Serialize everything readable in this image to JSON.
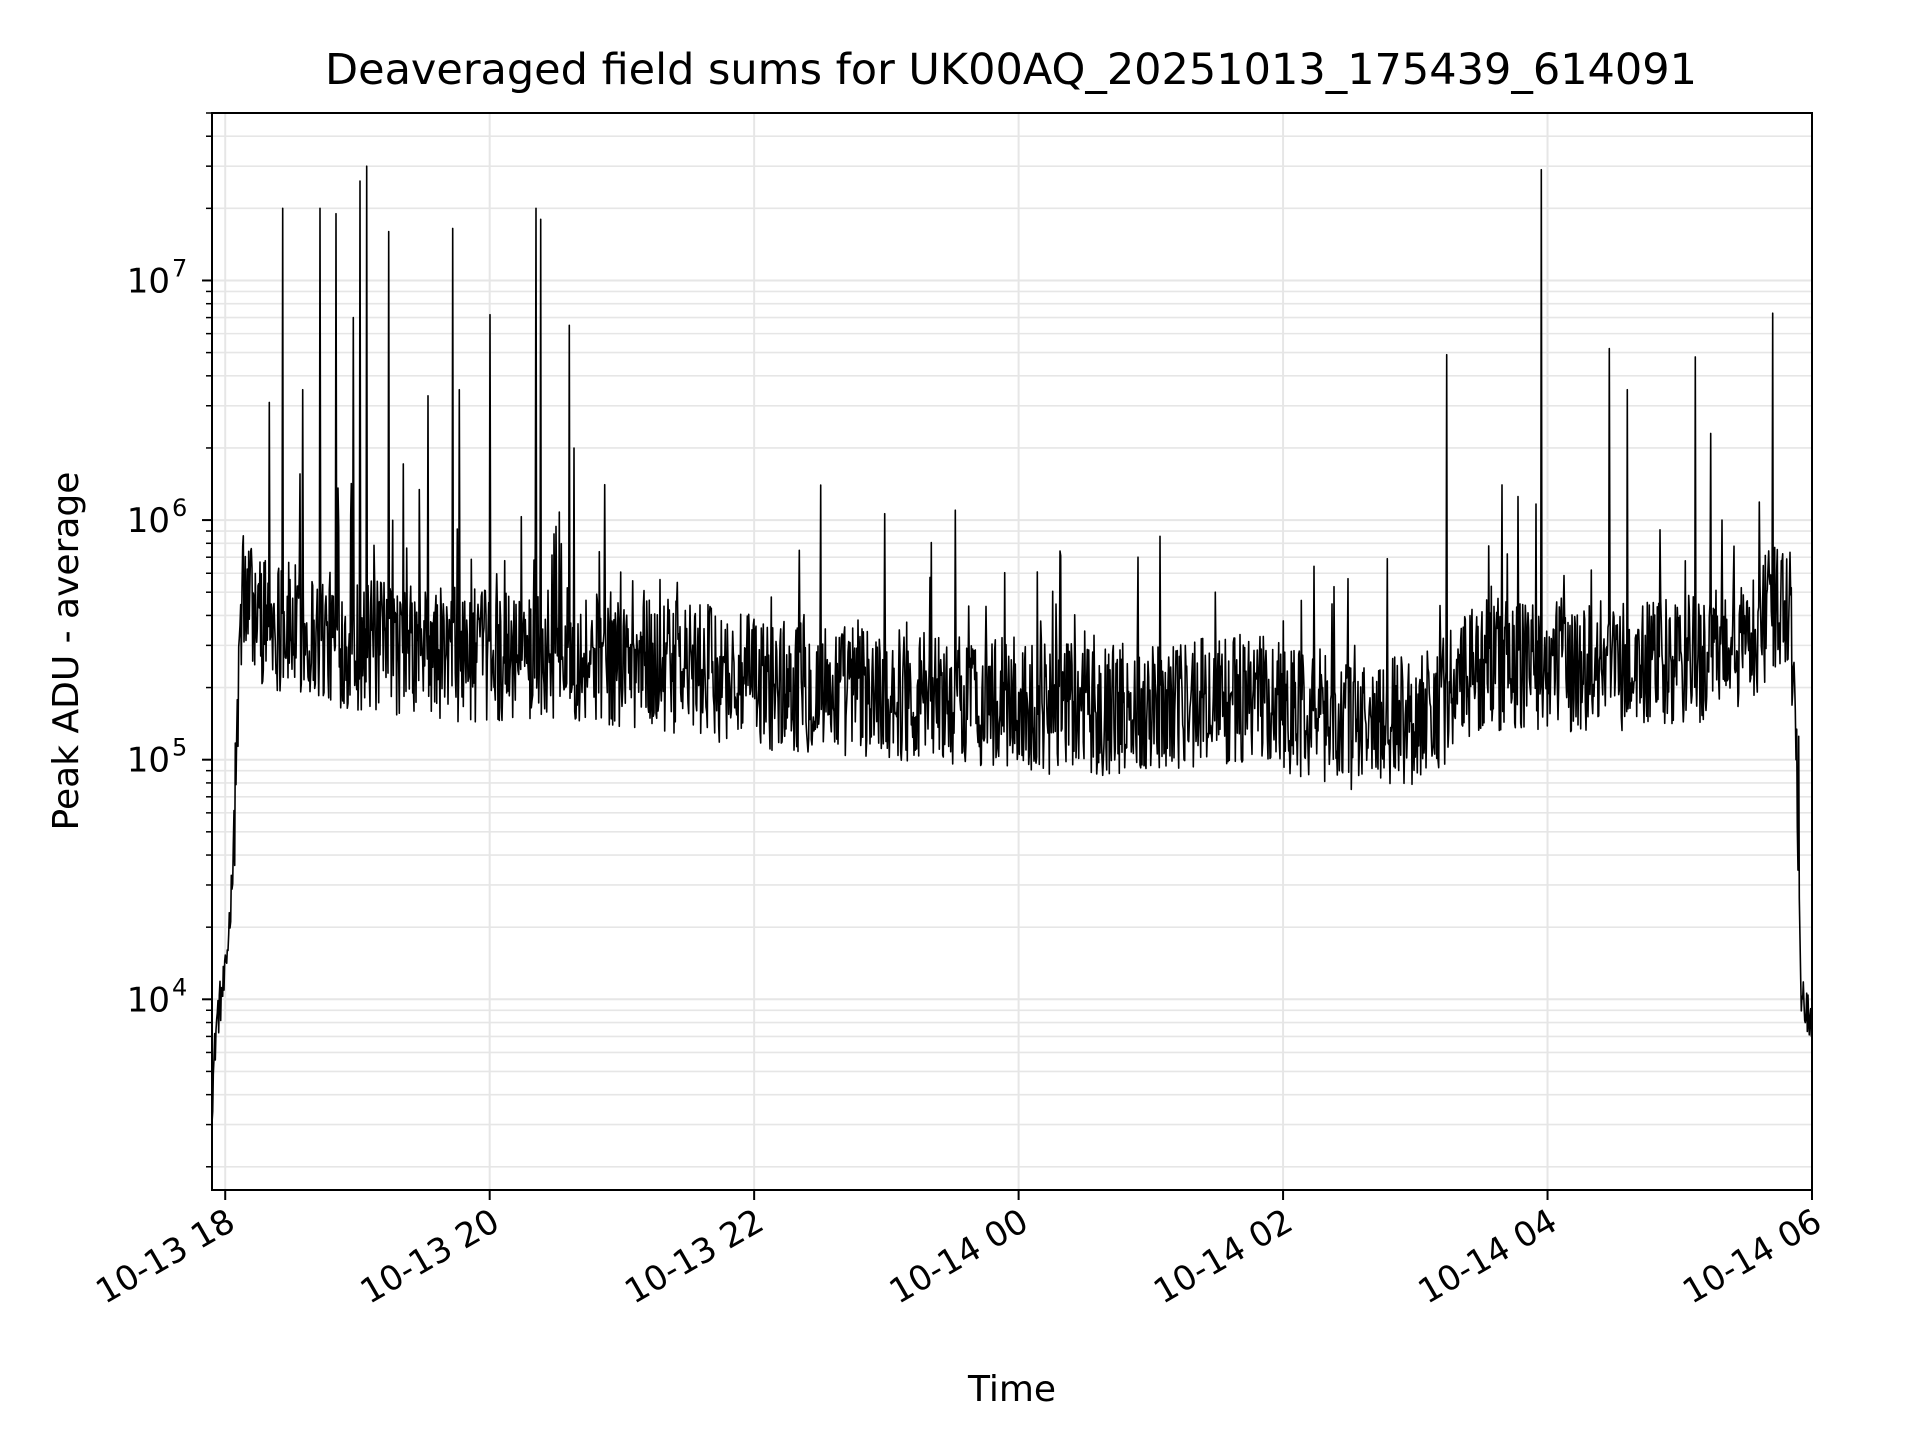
{
  "chart_data": {
    "type": "line",
    "title": "Deaveraged field sums for UK00AQ_20251013_175439_614091",
    "xlabel": "Time",
    "ylabel": "Peak ADU - average",
    "x_scale": "time",
    "y_scale": "log",
    "xlim": [
      "2025-10-13 17:54",
      "2025-10-14 06:00"
    ],
    "ylim": [
      1600,
      50000000
    ],
    "x_ticks": [
      {
        "value": "2025-10-13 18:00",
        "label": "10-13 18"
      },
      {
        "value": "2025-10-13 20:00",
        "label": "10-13 20"
      },
      {
        "value": "2025-10-13 22:00",
        "label": "10-13 22"
      },
      {
        "value": "2025-10-14 00:00",
        "label": "10-14 00"
      },
      {
        "value": "2025-10-14 02:00",
        "label": "10-14 02"
      },
      {
        "value": "2025-10-14 04:00",
        "label": "10-14 04"
      },
      {
        "value": "2025-10-14 06:00",
        "label": "10-14 06"
      }
    ],
    "y_ticks": [
      {
        "value": 10000,
        "base": "10",
        "exp": "4"
      },
      {
        "value": 100000,
        "base": "10",
        "exp": "5"
      },
      {
        "value": 1000000,
        "base": "10",
        "exp": "6"
      },
      {
        "value": 10000000,
        "base": "10",
        "exp": "7"
      }
    ],
    "grid": true,
    "minor_grid_y": true,
    "line_color": "#000000",
    "grid_color": "#e6e6e6",
    "series": [
      {
        "points": [
          [
            "2025-10-13 17:54",
            3800
          ],
          [
            "2025-10-13 17:56",
            8000
          ],
          [
            "2025-10-13 17:58",
            10000
          ],
          [
            "2025-10-13 18:00",
            12000
          ],
          [
            "2025-10-13 18:03",
            30000
          ],
          [
            "2025-10-13 18:06",
            200000
          ],
          [
            "2025-10-13 18:08",
            500000
          ],
          [
            "2025-10-13 18:15",
            400000
          ],
          [
            "2025-10-13 18:30",
            350000
          ],
          [
            "2025-10-13 19:00",
            300000
          ],
          [
            "2025-10-13 19:30",
            280000
          ],
          [
            "2025-10-13 20:00",
            270000
          ],
          [
            "2025-10-13 20:30",
            280000
          ],
          [
            "2025-10-13 21:00",
            260000
          ],
          [
            "2025-10-13 21:30",
            240000
          ],
          [
            "2025-10-13 22:00",
            210000
          ],
          [
            "2025-10-13 22:30",
            200000
          ],
          [
            "2025-10-13 23:00",
            190000
          ],
          [
            "2025-10-13 23:30",
            180000
          ],
          [
            "2025-10-14 00:00",
            170000
          ],
          [
            "2025-10-14 00:30",
            160000
          ],
          [
            "2025-10-14 01:00",
            170000
          ],
          [
            "2025-10-14 01:30",
            180000
          ],
          [
            "2025-10-14 02:00",
            170000
          ],
          [
            "2025-10-14 02:30",
            140000
          ],
          [
            "2025-10-14 03:00",
            150000
          ],
          [
            "2025-10-14 03:20",
            200000
          ],
          [
            "2025-10-14 03:30",
            250000
          ],
          [
            "2025-10-14 04:00",
            250000
          ],
          [
            "2025-10-14 04:30",
            240000
          ],
          [
            "2025-10-14 05:00",
            250000
          ],
          [
            "2025-10-14 05:30",
            300000
          ],
          [
            "2025-10-14 05:45",
            450000
          ],
          [
            "2025-10-14 05:50",
            500000
          ],
          [
            "2025-10-14 05:53",
            100000
          ],
          [
            "2025-10-14 05:55",
            11000
          ],
          [
            "2025-10-14 06:00",
            8000
          ]
        ],
        "spikes": [
          [
            "2025-10-13 18:20",
            3100000
          ],
          [
            "2025-10-13 18:26",
            20000000
          ],
          [
            "2025-10-13 18:35",
            3500000
          ],
          [
            "2025-10-13 18:43",
            20000000
          ],
          [
            "2025-10-13 18:50",
            19000000
          ],
          [
            "2025-10-13 18:58",
            7000000
          ],
          [
            "2025-10-13 19:01",
            26000000
          ],
          [
            "2025-10-13 19:04",
            30000000
          ],
          [
            "2025-10-13 19:14",
            16000000
          ],
          [
            "2025-10-13 19:32",
            3300000
          ],
          [
            "2025-10-13 19:43",
            16500000
          ],
          [
            "2025-10-13 19:46",
            3500000
          ],
          [
            "2025-10-13 20:00",
            7200000
          ],
          [
            "2025-10-13 20:21",
            20000000
          ],
          [
            "2025-10-13 20:23",
            18000000
          ],
          [
            "2025-10-13 20:36",
            6500000
          ],
          [
            "2025-10-13 20:38",
            2000000
          ],
          [
            "2025-10-13 22:30",
            1400000
          ],
          [
            "2025-10-13 23:31",
            1100000
          ],
          [
            "2025-10-14 03:14",
            4900000
          ],
          [
            "2025-10-14 03:57",
            29000000
          ],
          [
            "2025-10-14 04:28",
            5200000
          ],
          [
            "2025-10-14 04:36",
            3500000
          ],
          [
            "2025-10-14 05:07",
            4800000
          ],
          [
            "2025-10-14 05:14",
            2300000
          ],
          [
            "2025-10-14 05:42",
            7300000
          ]
        ]
      }
    ]
  }
}
